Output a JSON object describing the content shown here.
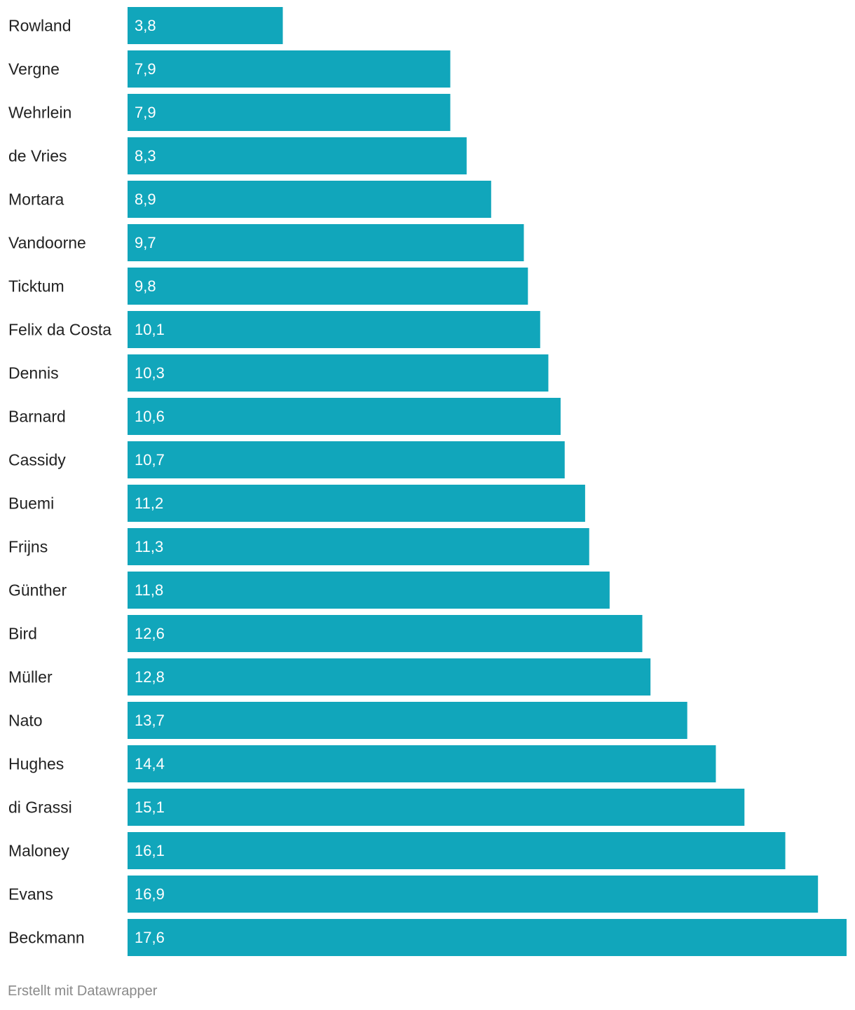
{
  "chart_data": {
    "type": "bar",
    "orientation": "horizontal",
    "categories": [
      "Rowland",
      "Vergne",
      "Wehrlein",
      "de Vries",
      "Mortara",
      "Vandoorne",
      "Ticktum",
      "Felix da Costa",
      "Dennis",
      "Barnard",
      "Cassidy",
      "Buemi",
      "Frijns",
      "Günther",
      "Bird",
      "Müller",
      "Nato",
      "Hughes",
      "di Grassi",
      "Maloney",
      "Evans",
      "Beckmann"
    ],
    "values": [
      3.8,
      7.9,
      7.9,
      8.3,
      8.9,
      9.7,
      9.8,
      10.1,
      10.3,
      10.6,
      10.7,
      11.2,
      11.3,
      11.8,
      12.6,
      12.8,
      13.7,
      14.4,
      15.1,
      16.1,
      16.9,
      17.6
    ],
    "value_labels": [
      "3,8",
      "7,9",
      "7,9",
      "8,3",
      "8,9",
      "9,7",
      "9,8",
      "10,1",
      "10,3",
      "10,6",
      "10,7",
      "11,2",
      "11,3",
      "11,8",
      "12,6",
      "12,8",
      "13,7",
      "14,4",
      "15,1",
      "16,1",
      "16,9",
      "17,6"
    ],
    "title": "",
    "xlabel": "",
    "ylabel": "",
    "xlim": [
      0,
      17.6
    ],
    "bar_color": "#11a6bb",
    "grid": false,
    "legend": "none"
  },
  "footer": {
    "credit": "Erstellt mit Datawrapper"
  }
}
